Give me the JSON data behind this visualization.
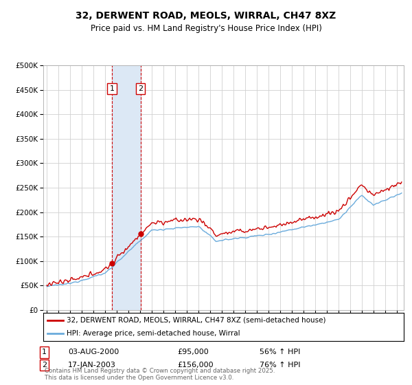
{
  "title": "32, DERWENT ROAD, MEOLS, WIRRAL, CH47 8XZ",
  "subtitle": "Price paid vs. HM Land Registry's House Price Index (HPI)",
  "ylim": [
    0,
    500000
  ],
  "yticks": [
    0,
    50000,
    100000,
    150000,
    200000,
    250000,
    300000,
    350000,
    400000,
    450000,
    500000
  ],
  "ytick_labels": [
    "£0",
    "£50K",
    "£100K",
    "£150K",
    "£200K",
    "£250K",
    "£300K",
    "£350K",
    "£400K",
    "£450K",
    "£500K"
  ],
  "xlim_start": 1994.7,
  "xlim_end": 2025.6,
  "purchase1_date": 2000.585,
  "purchase1_price": 95000,
  "purchase1_label": "1",
  "purchase2_date": 2003.046,
  "purchase2_price": 156000,
  "purchase2_label": "2",
  "line_color_property": "#cc0000",
  "line_color_hpi": "#6aabdc",
  "span_color": "#dce8f5",
  "legend_label_property": "32, DERWENT ROAD, MEOLS, WIRRAL, CH47 8XZ (semi-detached house)",
  "legend_label_hpi": "HPI: Average price, semi-detached house, Wirral",
  "table_row1": [
    "1",
    "03-AUG-2000",
    "£95,000",
    "56% ↑ HPI"
  ],
  "table_row2": [
    "2",
    "17-JAN-2003",
    "£156,000",
    "76% ↑ HPI"
  ],
  "footer": "Contains HM Land Registry data © Crown copyright and database right 2025.\nThis data is licensed under the Open Government Licence v3.0.",
  "background_color": "#ffffff",
  "grid_color": "#d0d0d0"
}
